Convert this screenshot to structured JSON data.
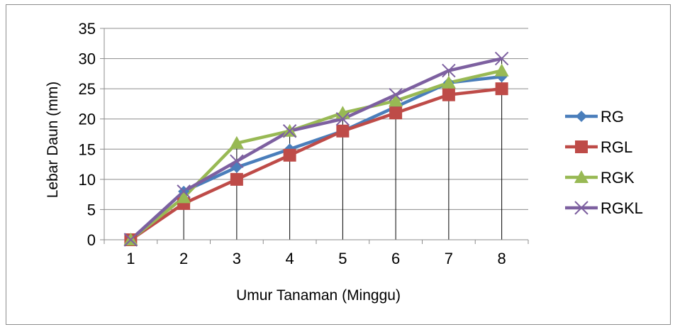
{
  "chart_data": {
    "type": "line",
    "title": "",
    "xlabel": "Umur  Tanaman  (Minggu)",
    "ylabel": "Lebar  Daun  (mm)",
    "categories": [
      "1",
      "2",
      "3",
      "4",
      "5",
      "6",
      "7",
      "8"
    ],
    "ylim": [
      0,
      35
    ],
    "yticks": [
      "0",
      "5",
      "10",
      "15",
      "20",
      "25",
      "30",
      "35"
    ],
    "grid": "horizontal",
    "drop_lines": true,
    "legend_position": "right",
    "series": [
      {
        "name": "RG",
        "values": [
          0,
          8,
          12,
          15,
          18,
          22,
          26,
          27
        ],
        "color": "#4a7ebb",
        "marker": "diamond"
      },
      {
        "name": "RGL",
        "values": [
          0,
          6,
          10,
          14,
          18,
          21,
          24,
          25
        ],
        "color": "#be4b48",
        "marker": "square"
      },
      {
        "name": "RGK",
        "values": [
          0,
          7,
          16,
          18,
          21,
          23,
          26,
          28
        ],
        "color": "#98b954",
        "marker": "triangle"
      },
      {
        "name": "RGKL",
        "values": [
          0,
          8,
          13,
          18,
          20,
          24,
          28,
          30
        ],
        "color": "#7d60a0",
        "marker": "x"
      }
    ]
  }
}
